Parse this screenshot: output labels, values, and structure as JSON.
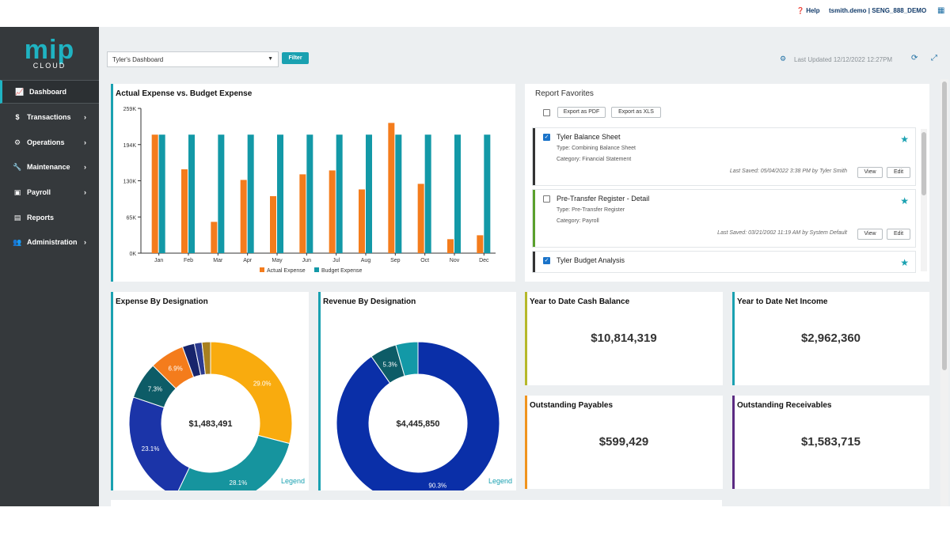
{
  "topbar": {
    "help": "Help",
    "user": "tsmith.demo | SENG_888_DEMO"
  },
  "logo": {
    "main": "mip",
    "sub": "CLOUD"
  },
  "sidebar": {
    "items": [
      {
        "label": "Dashboard",
        "icon": "chart-line-icon",
        "glyph": "📈",
        "active": true
      },
      {
        "label": "Transactions",
        "icon": "dollar-icon",
        "glyph": "$",
        "chevron": true
      },
      {
        "label": "Operations",
        "icon": "gears-icon",
        "glyph": "⚙",
        "chevron": true
      },
      {
        "label": "Maintenance",
        "icon": "wrench-icon",
        "glyph": "🔧",
        "chevron": true
      },
      {
        "label": "Payroll",
        "icon": "money-icon",
        "glyph": "▣",
        "chevron": true
      },
      {
        "label": "Reports",
        "icon": "document-icon",
        "glyph": "▤",
        "chevron": false
      },
      {
        "label": "Administration",
        "icon": "users-icon",
        "glyph": "👥",
        "chevron": true
      }
    ]
  },
  "toolbar": {
    "dashboard_select": "Tyler's Dashboard",
    "filter_label": "Filter",
    "last_updated": "Last Updated 12/12/2022 12:27PM"
  },
  "bar_chart_card": {
    "title": "Actual Expense vs. Budget Expense"
  },
  "report_favorites": {
    "title": "Report Favorites",
    "export_pdf": "Export as PDF",
    "export_xls": "Export as XLS",
    "reports": [
      {
        "name": "Tyler Balance Sheet",
        "checked": true,
        "accent": "#333333",
        "type": "Type: Combining Balance Sheet",
        "category": "Category: Financial Statement",
        "saved": "Last Saved: 05/04/2022 3:38 PM by Tyler Smith",
        "view": "View",
        "edit": "Edit"
      },
      {
        "name": "Pre-Transfer Register - Detail",
        "checked": false,
        "accent": "#5aa02c",
        "type": "Type: Pre-Transfer Register",
        "category": "Category: Payroll",
        "saved": "Last Saved: 03/21/2002 11:19 AM by System Default",
        "view": "View",
        "edit": "Edit"
      },
      {
        "name": "Tyler Budget Analysis",
        "checked": true,
        "accent": "#333333"
      }
    ]
  },
  "expense_card": {
    "title": "Expense By Designation",
    "total": "$1,483,491",
    "legend": "Legend"
  },
  "revenue_card": {
    "title": "Revenue By Designation",
    "total": "$4,445,850",
    "legend": "Legend"
  },
  "kpis": {
    "ytd_cash": {
      "title": "Year to Date Cash Balance",
      "value": "$10,814,319",
      "accent": "#b5b82a"
    },
    "ytd_net": {
      "title": "Year to Date Net Income",
      "value": "$2,962,360",
      "accent": "#1aa1b1"
    },
    "out_pay": {
      "title": "Outstanding Payables",
      "value": "$599,429",
      "accent": "#f0941e"
    },
    "out_rec": {
      "title": "Outstanding Receivables",
      "value": "$1,583,715",
      "accent": "#5b2b82"
    }
  },
  "chart_data": [
    {
      "type": "bar",
      "title": "Actual Expense vs. Budget Expense",
      "categories": [
        "Jan",
        "Feb",
        "Mar",
        "Apr",
        "May",
        "Jun",
        "Jul",
        "Aug",
        "Sep",
        "Oct",
        "Nov",
        "Dec"
      ],
      "series": [
        {
          "name": "Actual Expense",
          "color": "#f47c1c",
          "values": [
            212000,
            150000,
            56000,
            131000,
            102000,
            141000,
            148000,
            114000,
            233000,
            124000,
            25000,
            32000
          ]
        },
        {
          "name": "Budget Expense",
          "color": "#1399a7",
          "values": [
            212000,
            212000,
            212000,
            212000,
            212000,
            212000,
            212000,
            212000,
            212000,
            212000,
            212000,
            212000
          ]
        }
      ],
      "y_ticks": [
        "0K",
        "65K",
        "130K",
        "194K",
        "259K"
      ],
      "ylim": [
        0,
        259000
      ],
      "legend": "bottom"
    },
    {
      "type": "pie",
      "title": "Expense By Designation",
      "slices": [
        {
          "value": 29.0,
          "label": "29.0%",
          "color": "#f9ab0e"
        },
        {
          "value": 28.1,
          "label": "28.1%",
          "color": "#16949e"
        },
        {
          "value": 23.1,
          "label": "23.1%",
          "color": "#1b34a8"
        },
        {
          "value": 7.3,
          "label": "7.3%",
          "color": "#0d5c67"
        },
        {
          "value": 6.9,
          "label": "6.9%",
          "color": "#f47c1c"
        },
        {
          "value": 2.4,
          "label": "",
          "color": "#17246b"
        },
        {
          "value": 1.5,
          "label": "",
          "color": "#2b3a8f"
        },
        {
          "value": 1.7,
          "label": "",
          "color": "#a8801f"
        }
      ]
    },
    {
      "type": "pie",
      "title": "Revenue By Designation",
      "slices": [
        {
          "value": 90.3,
          "label": "90.3%",
          "color": "#0a2fa8"
        },
        {
          "value": 5.3,
          "label": "5.3%",
          "color": "#0d5c67"
        },
        {
          "value": 4.4,
          "label": "",
          "color": "#1399a7"
        }
      ]
    }
  ]
}
